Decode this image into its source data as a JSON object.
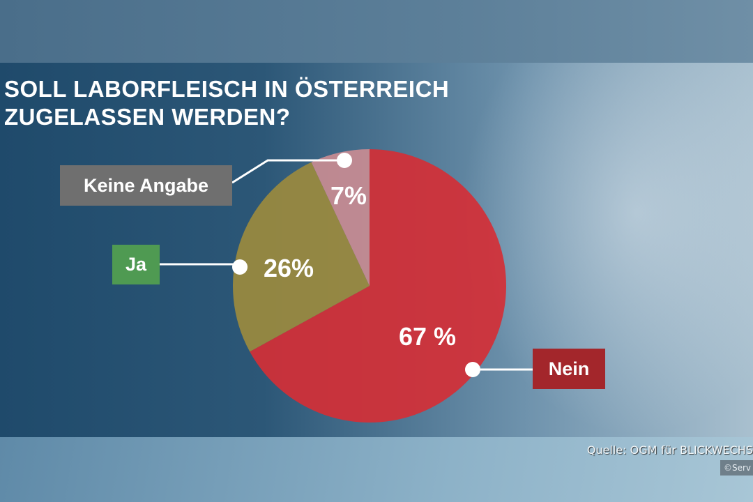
{
  "chart_data": {
    "type": "pie",
    "title": "SOLL LABORFLEISCH IN ÖSTERREICH ZUGELASSEN WERDEN?",
    "title_lines": [
      "SOLL LABORFLEISCH IN ÖSTERREICH",
      "ZUGELASSEN WERDEN?"
    ],
    "slices": [
      {
        "name": "Nein",
        "value": 67,
        "label": "67 %",
        "color": "#d42f36",
        "label_bg": "#a3262b"
      },
      {
        "name": "Ja",
        "value": 26,
        "label": "26%",
        "color": "#9b8a3e",
        "label_bg": "#4f9a52"
      },
      {
        "name": "Keine Angabe",
        "value": 7,
        "label": "7%",
        "color": "#c98c92",
        "label_bg": "#6f6f6f"
      }
    ],
    "start": "top",
    "direction": "clockwise"
  },
  "footer": {
    "source": "Quelle: OGM für BLICKWECHS",
    "credit": "©Serv"
  }
}
